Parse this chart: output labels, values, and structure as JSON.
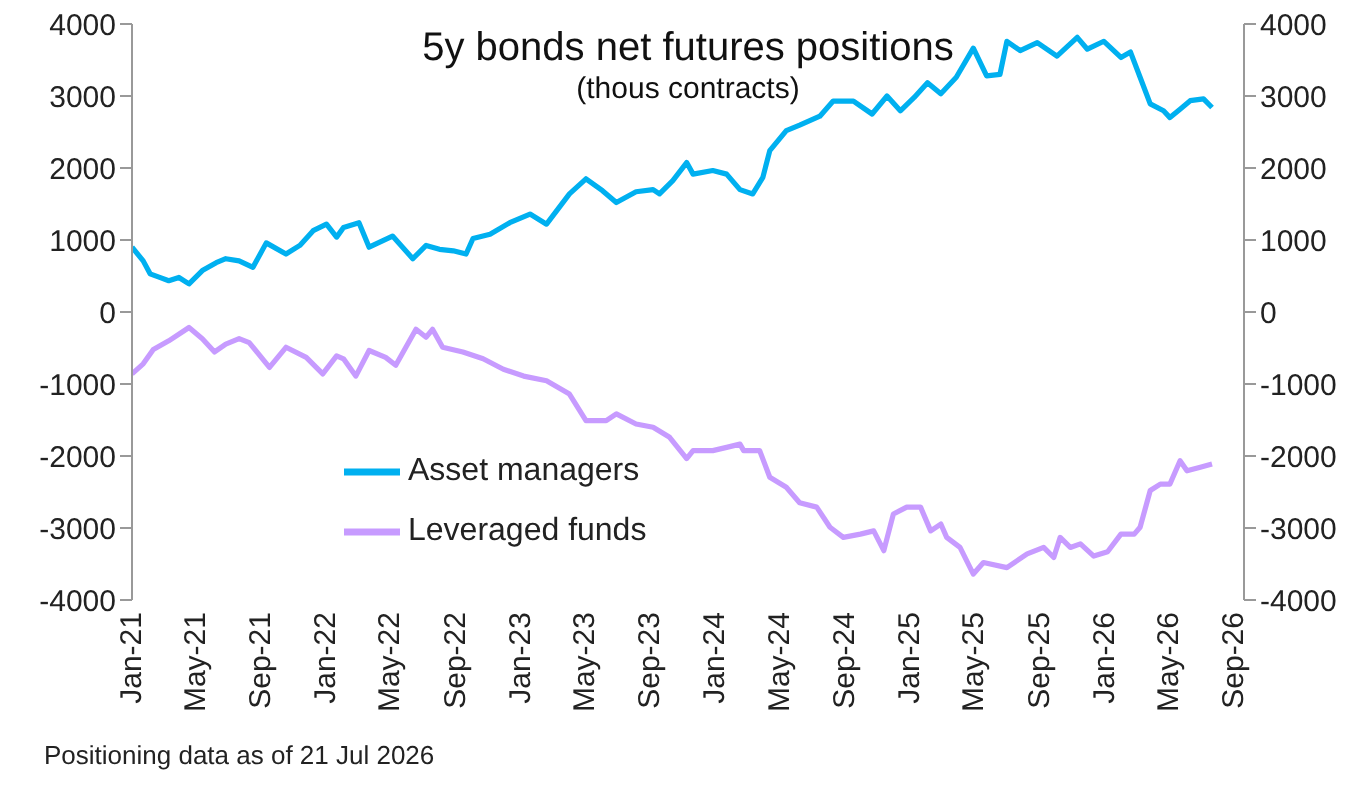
{
  "chart_data": {
    "type": "line",
    "title": "5y bonds net futures positions",
    "subtitle": "(thous contracts)",
    "annotations": [
      "Positioning data as of 21 Jul 2026"
    ],
    "xlim": [
      "2021-01-01",
      "2026-09-19"
    ],
    "xticks": [
      {
        "value": "2021-01-01",
        "label": "Jan-21"
      },
      {
        "value": "2021-05-01",
        "label": "May-21"
      },
      {
        "value": "2021-09-01",
        "label": "Sep-21"
      },
      {
        "value": "2022-01-01",
        "label": "Jan-22"
      },
      {
        "value": "2022-05-01",
        "label": "May-22"
      },
      {
        "value": "2022-09-01",
        "label": "Sep-22"
      },
      {
        "value": "2023-01-01",
        "label": "Jan-23"
      },
      {
        "value": "2023-05-01",
        "label": "May-23"
      },
      {
        "value": "2023-09-01",
        "label": "Sep-23"
      },
      {
        "value": "2024-01-01",
        "label": "Jan-24"
      },
      {
        "value": "2024-05-01",
        "label": "May-24"
      },
      {
        "value": "2024-09-01",
        "label": "Sep-24"
      },
      {
        "value": "2025-01-01",
        "label": "Jan-25"
      },
      {
        "value": "2025-05-01",
        "label": "May-25"
      },
      {
        "value": "2025-09-01",
        "label": "Sep-25"
      },
      {
        "value": "2026-01-01",
        "label": "Jan-26"
      },
      {
        "value": "2026-05-01",
        "label": "May-26"
      },
      {
        "value": "2026-09-01",
        "label": "Sep-26"
      }
    ],
    "ylim": [
      -4000,
      4000
    ],
    "yticks": [
      -4000,
      -3000,
      -2000,
      -1000,
      0,
      1000,
      2000,
      3000,
      4000
    ],
    "y2lim": [
      -4000,
      4000
    ],
    "y2ticks": [
      -4000,
      -3000,
      -2000,
      -1000,
      0,
      1000,
      2000,
      3000,
      4000
    ],
    "legend": "bottom",
    "marker": "none",
    "line_style": "solid",
    "series": [
      {
        "name": "Asset managers",
        "color": "#00b0f0",
        "x": [
          "2021-01-01",
          "2021-01-22",
          "2021-02-04",
          "2021-02-22",
          "2021-03-11",
          "2021-03-30",
          "2021-04-18",
          "2021-05-13",
          "2021-06-08",
          "2021-06-26",
          "2021-07-21",
          "2021-08-16",
          "2021-09-10",
          "2021-10-17",
          "2021-11-12",
          "2021-12-07",
          "2022-01-01",
          "2022-01-20",
          "2022-02-02",
          "2022-03-03",
          "2022-03-22",
          "2022-05-05",
          "2022-06-12",
          "2022-07-07",
          "2022-08-01",
          "2022-08-27",
          "2022-09-20",
          "2022-10-03",
          "2022-11-04",
          "2022-12-11",
          "2023-01-18",
          "2023-02-18",
          "2023-04-02",
          "2023-05-03",
          "2023-06-03",
          "2023-06-29",
          "2023-08-05",
          "2023-09-06",
          "2023-09-18",
          "2023-10-13",
          "2023-11-08",
          "2023-11-20",
          "2023-12-27",
          "2024-01-22",
          "2024-02-16",
          "2024-03-11",
          "2024-03-30",
          "2024-04-12",
          "2024-05-13",
          "2024-06-07",
          "2024-07-15",
          "2024-08-09",
          "2024-09-16",
          "2024-10-21",
          "2024-11-18",
          "2024-12-13",
          "2025-01-08",
          "2025-02-02",
          "2025-02-27",
          "2025-03-28",
          "2025-04-29",
          "2025-05-24",
          "2025-06-18",
          "2025-07-01",
          "2025-07-26",
          "2025-08-27",
          "2025-10-03",
          "2025-11-10",
          "2025-11-29",
          "2025-12-30",
          "2026-01-31",
          "2026-02-18",
          "2026-03-08",
          "2026-03-27",
          "2026-04-21",
          "2026-05-03",
          "2026-05-22",
          "2026-06-10",
          "2026-07-05",
          "2026-07-21"
        ],
        "values": [
          900,
          710,
          530,
          480,
          435,
          480,
          390,
          575,
          685,
          740,
          710,
          620,
          960,
          805,
          925,
          1130,
          1220,
          1040,
          1175,
          1240,
          900,
          1055,
          740,
          925,
          870,
          850,
          805,
          1020,
          1080,
          1240,
          1360,
          1220,
          1640,
          1850,
          1685,
          1520,
          1670,
          1700,
          1640,
          1825,
          2075,
          1915,
          1965,
          1915,
          1700,
          1640,
          1870,
          2240,
          2520,
          2595,
          2720,
          2930,
          2930,
          2750,
          3000,
          2795,
          2980,
          3185,
          3030,
          3260,
          3665,
          3280,
          3300,
          3760,
          3630,
          3740,
          3555,
          3815,
          3650,
          3760,
          3535,
          3610,
          3260,
          2890,
          2795,
          2700,
          2815,
          2935,
          2960,
          2840
        ]
      },
      {
        "name": "Leveraged funds",
        "color": "#c79bff",
        "x": [
          "2021-01-01",
          "2021-01-22",
          "2021-02-10",
          "2021-03-11",
          "2021-04-18",
          "2021-05-13",
          "2021-06-05",
          "2021-06-26",
          "2021-07-21",
          "2021-08-09",
          "2021-09-16",
          "2021-10-17",
          "2021-11-24",
          "2021-12-25",
          "2022-01-20",
          "2022-02-02",
          "2022-02-25",
          "2022-03-22",
          "2022-04-22",
          "2022-05-11",
          "2022-06-18",
          "2022-07-07",
          "2022-07-19",
          "2022-08-07",
          "2022-09-14",
          "2022-10-22",
          "2022-11-29",
          "2023-01-06",
          "2023-02-18",
          "2023-04-02",
          "2023-05-03",
          "2023-06-10",
          "2023-06-29",
          "2023-08-05",
          "2023-09-06",
          "2023-10-07",
          "2023-11-08",
          "2023-11-20",
          "2023-12-27",
          "2024-01-22",
          "2024-02-16",
          "2024-02-23",
          "2024-03-24",
          "2024-04-12",
          "2024-05-13",
          "2024-06-07",
          "2024-07-09",
          "2024-08-03",
          "2024-08-28",
          "2024-09-29",
          "2024-10-24",
          "2024-11-12",
          "2024-11-30",
          "2024-12-25",
          "2025-01-20",
          "2025-02-08",
          "2025-02-27",
          "2025-03-10",
          "2025-04-04",
          "2025-04-29",
          "2025-05-18",
          "2025-07-01",
          "2025-08-08",
          "2025-09-08",
          "2025-09-27",
          "2025-10-09",
          "2025-10-28",
          "2025-11-16",
          "2025-12-11",
          "2026-01-06",
          "2026-01-31",
          "2026-02-25",
          "2026-03-08",
          "2026-03-27",
          "2026-04-15",
          "2026-05-03",
          "2026-05-22",
          "2026-06-04",
          "2026-06-29",
          "2026-07-21"
        ],
        "values": [
          -860,
          -720,
          -520,
          -400,
          -215,
          -370,
          -555,
          -445,
          -370,
          -425,
          -770,
          -490,
          -630,
          -860,
          -610,
          -650,
          -890,
          -535,
          -630,
          -740,
          -240,
          -350,
          -240,
          -490,
          -555,
          -650,
          -795,
          -890,
          -955,
          -1140,
          -1510,
          -1510,
          -1415,
          -1555,
          -1600,
          -1740,
          -2035,
          -1925,
          -1925,
          -1880,
          -1835,
          -1925,
          -1925,
          -2295,
          -2435,
          -2650,
          -2710,
          -2990,
          -3130,
          -3085,
          -3040,
          -3315,
          -2805,
          -2710,
          -2710,
          -3040,
          -2945,
          -3130,
          -3270,
          -3640,
          -3480,
          -3550,
          -3360,
          -3270,
          -3410,
          -3130,
          -3270,
          -3220,
          -3390,
          -3330,
          -3085,
          -3085,
          -2990,
          -2480,
          -2390,
          -2390,
          -2065,
          -2205,
          -2155,
          -2110
        ]
      }
    ]
  }
}
